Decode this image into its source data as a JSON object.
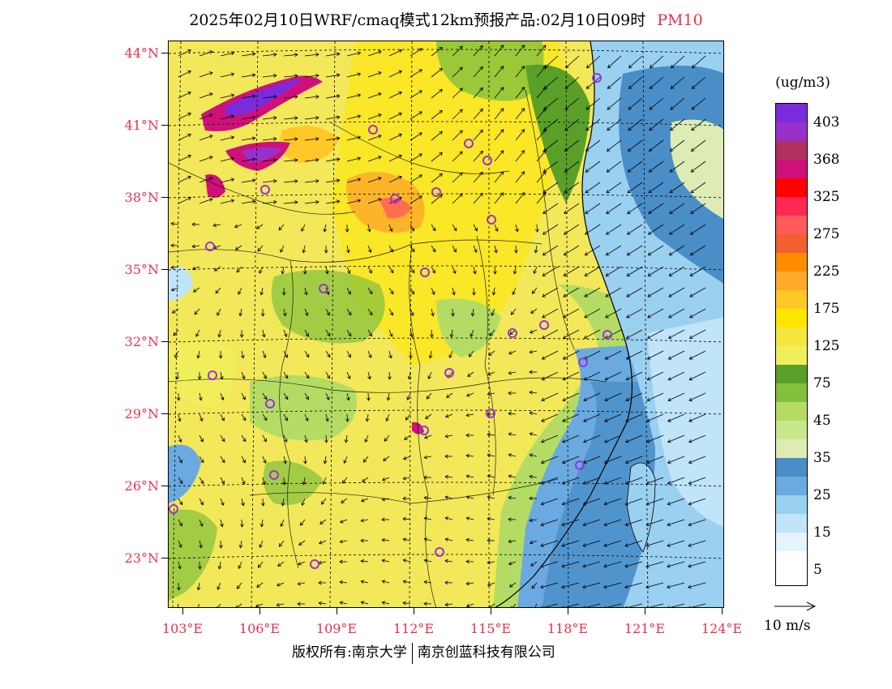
{
  "title": {
    "text": "2025年02月10日WRF/cmaq模式12km预报产品:02月10日09时",
    "pollutant": "PM10"
  },
  "map": {
    "lat_labels": [
      "44°N",
      "41°N",
      "38°N",
      "35°N",
      "32°N",
      "29°N",
      "26°N",
      "23°N"
    ],
    "lon_labels": [
      "103°E",
      "106°E",
      "109°E",
      "112°E",
      "115°E",
      "118°E",
      "121°E",
      "124°E"
    ],
    "background_color": "#f2e85a",
    "sea_color": "#9fd0ee",
    "grid_style": "dashed"
  },
  "legend": {
    "unit": "(ug/m3)",
    "colors": [
      "#7a2bdc",
      "#9930cc",
      "#b03060",
      "#d0107a",
      "#ff0000",
      "#ff2850",
      "#ff5a5a",
      "#f06030",
      "#ff8c00",
      "#ffaa28",
      "#ffc828",
      "#ffe600",
      "#f5e640",
      "#f0ee5a",
      "#5aa028",
      "#82c03c",
      "#b4dc64",
      "#c8e68c",
      "#dcecb4",
      "#4a8ec8",
      "#6aaae0",
      "#9ad0f0",
      "#c0e4f8",
      "#e4f4fc",
      "#ffffff"
    ],
    "labels": [
      "403",
      "368",
      "325",
      "275",
      "225",
      "175",
      "125",
      "75",
      "45",
      "35",
      "25",
      "15",
      "5"
    ]
  },
  "vector_reference": {
    "label": "10 m/s"
  },
  "footer": {
    "left": "版权所有:南京大学",
    "right": "南京创蓝科技有限公司"
  }
}
